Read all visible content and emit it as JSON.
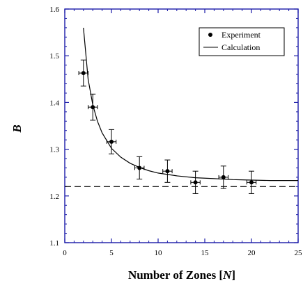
{
  "chart_data": {
    "type": "scatter",
    "xlabel": "Number of Zones [N]",
    "xlabel_parts": [
      "Number of Zones [",
      "N",
      "]"
    ],
    "ylabel": "B",
    "xlim": [
      0,
      25
    ],
    "ylim": [
      1.1,
      1.6
    ],
    "xticks": [
      "0",
      "5",
      "10",
      "15",
      "20",
      "25"
    ],
    "yticks": [
      "1.1",
      "1.2",
      "1.3",
      "1.4",
      "1.5",
      "1.6"
    ],
    "grid": false,
    "legend_position": "top-right",
    "frame_color": "#1a1aa8",
    "series": [
      {
        "name": "Experiment",
        "style": "points-with-error-bars",
        "x": [
          2,
          3,
          5,
          8,
          11,
          14,
          17,
          20
        ],
        "y": [
          1.463,
          1.39,
          1.316,
          1.26,
          1.253,
          1.229,
          1.24,
          1.229
        ],
        "x_err": [
          0.5,
          0.5,
          0.5,
          0.5,
          0.5,
          0.5,
          0.5,
          0.5
        ],
        "y_err": [
          0.028,
          0.028,
          0.026,
          0.024,
          0.024,
          0.024,
          0.024,
          0.024
        ]
      },
      {
        "name": "Calculation",
        "style": "solid-line",
        "x": [
          2,
          2.5,
          3,
          3.5,
          4,
          5,
          6,
          7,
          8,
          9,
          10,
          11,
          12,
          14,
          16,
          18,
          20,
          22,
          25
        ],
        "y": [
          1.56,
          1.45,
          1.395,
          1.36,
          1.335,
          1.302,
          1.283,
          1.27,
          1.261,
          1.254,
          1.249,
          1.246,
          1.243,
          1.239,
          1.237,
          1.235,
          1.234,
          1.233,
          1.233
        ]
      },
      {
        "style": "dashed-line",
        "x": [
          0,
          25
        ],
        "y": [
          1.22,
          1.22
        ]
      }
    ]
  }
}
